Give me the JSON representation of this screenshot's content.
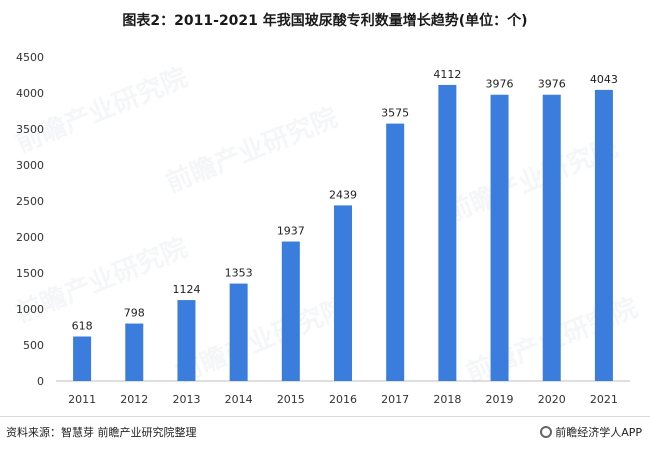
{
  "chart_data": {
    "type": "bar",
    "title": "图表2：2011-2021 年我国玻尿酸专利数量增长趋势(单位：个)",
    "categories": [
      "2011",
      "2012",
      "2013",
      "2014",
      "2015",
      "2016",
      "2017",
      "2018",
      "2019",
      "2020",
      "2021"
    ],
    "values": [
      618,
      798,
      1124,
      1353,
      1937,
      2439,
      3575,
      4112,
      3976,
      3976,
      4043
    ],
    "ylim": [
      0,
      4500
    ],
    "yticks": [
      0,
      500,
      1000,
      1500,
      2000,
      2500,
      3000,
      3500,
      4000,
      4500
    ],
    "grid": false,
    "bar_color": "#3b7ddd"
  },
  "footer": {
    "source": "资料来源：智慧芽 前瞻产业研究院整理",
    "brand": "前瞻经济学人APP"
  },
  "watermark": {
    "text": "前瞻产业研究院"
  }
}
